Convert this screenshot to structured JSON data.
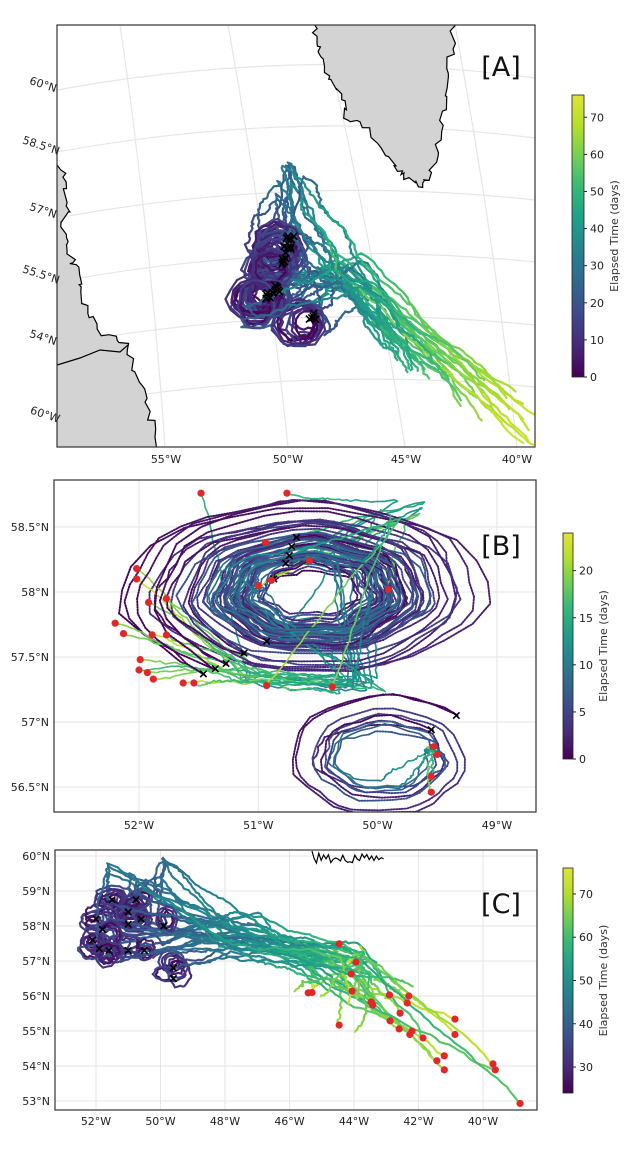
{
  "panels": [
    {
      "label": "[A]",
      "lat_ticks": [
        "60°N",
        "58.5°N",
        "57°N",
        "55.5°N",
        "54°N",
        "60°W"
      ],
      "lon_ticks": [
        "55°W",
        "50°W",
        "45°W",
        "40°W"
      ],
      "colorbar": {
        "label": "Elapsed Time (days)",
        "ticks": [
          "0",
          "10",
          "20",
          "30",
          "40",
          "50",
          "60",
          "70"
        ],
        "range": [
          0,
          76
        ],
        "colormap": "viridis"
      }
    },
    {
      "label": "[B]",
      "lat_ticks": [
        "58.5°N",
        "58°N",
        "57.5°N",
        "57°N",
        "56.5°N"
      ],
      "lon_ticks": [
        "52°W",
        "51°W",
        "50°W",
        "49°W"
      ],
      "colorbar": {
        "label": "Elapsed Time (days)",
        "ticks": [
          "0",
          "5",
          "10",
          "15",
          "20"
        ],
        "range": [
          0,
          24
        ],
        "colormap": "viridis"
      },
      "start_markers": [
        [
          -50.68,
          58.42
        ],
        [
          -50.72,
          58.35
        ],
        [
          -50.74,
          58.28
        ],
        [
          -50.77,
          58.22
        ],
        [
          -50.87,
          58.1
        ],
        [
          -50.93,
          57.62
        ],
        [
          -51.12,
          57.53
        ],
        [
          -51.27,
          57.45
        ],
        [
          -51.36,
          57.41
        ],
        [
          -51.46,
          57.37
        ],
        [
          -49.34,
          57.05
        ],
        [
          -49.55,
          56.94
        ]
      ],
      "end_markers": [
        [
          -51.48,
          58.76
        ],
        [
          -50.76,
          58.76
        ],
        [
          -50.94,
          58.38
        ],
        [
          -50.57,
          58.24
        ],
        [
          -50.89,
          58.09
        ],
        [
          -51.0,
          58.05
        ],
        [
          -49.91,
          58.02
        ],
        [
          -52.02,
          58.18
        ],
        [
          -52.02,
          58.1
        ],
        [
          -51.92,
          57.92
        ],
        [
          -51.77,
          57.95
        ],
        [
          -52.2,
          57.76
        ],
        [
          -52.13,
          57.68
        ],
        [
          -51.89,
          57.67
        ],
        [
          -51.77,
          57.67
        ],
        [
          -51.99,
          57.48
        ],
        [
          -52.0,
          57.4
        ],
        [
          -51.93,
          57.38
        ],
        [
          -51.88,
          57.33
        ],
        [
          -51.63,
          57.3
        ],
        [
          -51.54,
          57.3
        ],
        [
          -50.93,
          57.28
        ],
        [
          -50.38,
          57.27
        ],
        [
          -49.53,
          56.81
        ],
        [
          -49.5,
          56.75
        ],
        [
          -49.55,
          56.58
        ],
        [
          -49.55,
          56.46
        ]
      ]
    },
    {
      "label": "[C]",
      "lat_ticks": [
        "60°N",
        "59°N",
        "58°N",
        "57°N",
        "56°N",
        "55°N",
        "54°N",
        "53°N"
      ],
      "lon_ticks": [
        "52°W",
        "50°W",
        "48°W",
        "46°W",
        "44°W",
        "42°W",
        "40°W"
      ],
      "colorbar": {
        "label": "Elapsed Time (days)",
        "ticks": [
          "30",
          "40",
          "50",
          "60",
          "70"
        ],
        "range": [
          24,
          76
        ],
        "colormap": "viridis"
      },
      "start_markers": [
        [
          -51.5,
          58.75
        ],
        [
          -50.76,
          58.75
        ],
        [
          -52.0,
          58.2
        ],
        [
          -51.8,
          57.9
        ],
        [
          -52.1,
          57.6
        ],
        [
          -51.9,
          57.35
        ],
        [
          -51.6,
          57.3
        ],
        [
          -51.0,
          57.3
        ],
        [
          -50.5,
          57.3
        ],
        [
          -51.0,
          58.05
        ],
        [
          -50.6,
          58.2
        ],
        [
          -49.9,
          58.0
        ],
        [
          -49.6,
          56.8
        ],
        [
          -49.6,
          56.5
        ],
        [
          -51.0,
          58.4
        ]
      ],
      "end_markers": [
        [
          -44.46,
          57.49
        ],
        [
          -43.94,
          56.97
        ],
        [
          -44.09,
          56.63
        ],
        [
          -44.06,
          56.14
        ],
        [
          -45.42,
          56.09
        ],
        [
          -45.3,
          56.1
        ],
        [
          -44.46,
          55.17
        ],
        [
          -43.47,
          55.83
        ],
        [
          -43.42,
          55.74
        ],
        [
          -42.9,
          56.03
        ],
        [
          -42.3,
          56.0
        ],
        [
          -42.35,
          55.8
        ],
        [
          -42.57,
          55.51
        ],
        [
          -42.88,
          55.29
        ],
        [
          -42.6,
          55.06
        ],
        [
          -42.2,
          55.0
        ],
        [
          -42.27,
          54.9
        ],
        [
          -41.86,
          54.8
        ],
        [
          -40.87,
          55.34
        ],
        [
          -40.87,
          54.9
        ],
        [
          -41.2,
          54.29
        ],
        [
          -41.43,
          54.15
        ],
        [
          -41.2,
          53.89
        ],
        [
          -39.69,
          54.06
        ],
        [
          -39.62,
          53.89
        ],
        [
          -38.85,
          52.93
        ]
      ]
    }
  ],
  "colors": {
    "land": "#d3d3d3",
    "coastline": "#000000",
    "end_marker": "#e0282a",
    "start_marker": "#000000",
    "grid": "#e6e6e6",
    "viridis": [
      "#440154",
      "#482878",
      "#3e4989",
      "#31688e",
      "#26828e",
      "#1f9e89",
      "#35b779",
      "#6ece58",
      "#b5de2b",
      "#dfe33a"
    ]
  }
}
